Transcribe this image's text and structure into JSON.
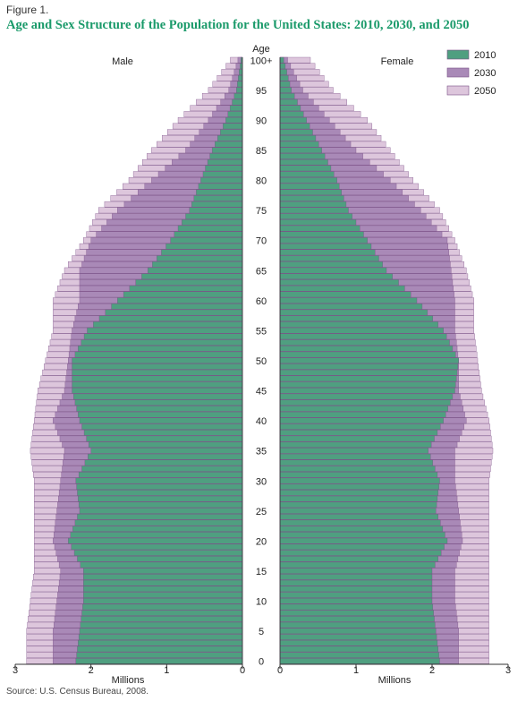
{
  "figure_label": "Figure 1.",
  "source_note": "Source: U.S. Census Bureau, 2008.",
  "colors": {
    "s2010": "#4f9f80",
    "s2030": "#a989b7",
    "s2050": "#ddc6dc",
    "edge": "#7a4f86",
    "title": "#1a9a6a"
  },
  "chart_data": {
    "type": "bar",
    "orientation": "horizontal-population-pyramid",
    "title": "Age and Sex Structure of the Population for the United States: 2010, 2030, and 2050",
    "age_axis_title": "Age",
    "age_tick_labels": [
      "100+",
      "95",
      "90",
      "85",
      "80",
      "75",
      "70",
      "65",
      "60",
      "55",
      "50",
      "45",
      "40",
      "35",
      "30",
      "25",
      "20",
      "15",
      "10",
      "5",
      "0"
    ],
    "xlabel": "Millions",
    "male_label": "Male",
    "female_label": "Female",
    "male_ticks": [
      "3",
      "2",
      "1",
      "0"
    ],
    "female_ticks": [
      "0",
      "1",
      "2",
      "3"
    ],
    "xlim": [
      0,
      3
    ],
    "legend_placement": "top-right",
    "legend": [
      "2010",
      "2030",
      "2050"
    ],
    "grid": false,
    "overlay": "series drawn back to front: 2050, 2030, 2010",
    "age_points": [
      0,
      5,
      10,
      15,
      20,
      25,
      30,
      35,
      40,
      45,
      50,
      55,
      60,
      65,
      70,
      75,
      80,
      85,
      90,
      95,
      100
    ],
    "series": [
      {
        "name": "2010",
        "male": [
          2.2,
          2.15,
          2.1,
          2.1,
          2.3,
          2.15,
          2.2,
          2.0,
          2.15,
          2.25,
          2.25,
          2.05,
          1.65,
          1.25,
          0.95,
          0.7,
          0.55,
          0.4,
          0.22,
          0.08,
          0.02
        ],
        "female": [
          2.1,
          2.05,
          2.0,
          2.0,
          2.2,
          2.05,
          2.1,
          1.95,
          2.15,
          2.3,
          2.35,
          2.15,
          1.8,
          1.4,
          1.15,
          0.9,
          0.75,
          0.55,
          0.35,
          0.15,
          0.05
        ]
      },
      {
        "name": "2030",
        "male": [
          2.5,
          2.5,
          2.45,
          2.4,
          2.5,
          2.45,
          2.4,
          2.35,
          2.5,
          2.35,
          2.3,
          2.25,
          2.15,
          2.15,
          2.0,
          1.65,
          1.2,
          0.75,
          0.45,
          0.18,
          0.06
        ],
        "female": [
          2.35,
          2.35,
          2.3,
          2.3,
          2.4,
          2.35,
          2.3,
          2.3,
          2.45,
          2.35,
          2.35,
          2.3,
          2.3,
          2.25,
          2.2,
          1.85,
          1.45,
          1.0,
          0.65,
          0.3,
          0.1
        ]
      },
      {
        "name": "2050",
        "male": [
          2.85,
          2.85,
          2.8,
          2.75,
          2.75,
          2.75,
          2.75,
          2.8,
          2.75,
          2.7,
          2.6,
          2.5,
          2.5,
          2.35,
          2.1,
          1.9,
          1.5,
          1.2,
          0.85,
          0.45,
          0.16
        ],
        "female": [
          2.75,
          2.75,
          2.75,
          2.75,
          2.75,
          2.75,
          2.75,
          2.8,
          2.75,
          2.65,
          2.6,
          2.55,
          2.55,
          2.45,
          2.3,
          2.1,
          1.75,
          1.45,
          1.15,
          0.7,
          0.4
        ]
      }
    ]
  }
}
